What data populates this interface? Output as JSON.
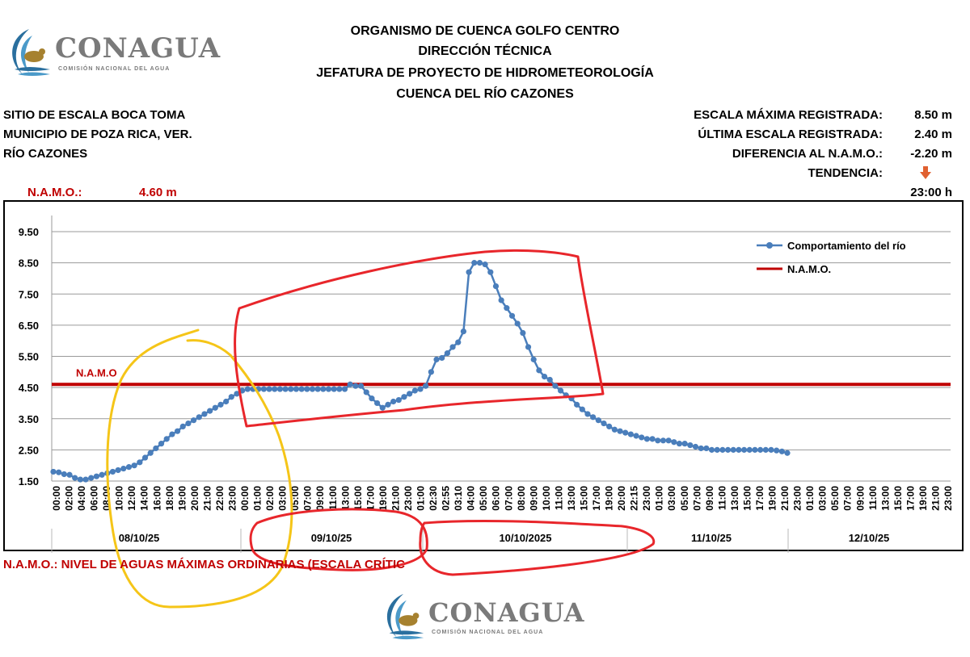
{
  "header": {
    "line1": "ORGANISMO DE CUENCA GOLFO CENTRO",
    "line2": "DIRECCIÓN TÉCNICA",
    "line3": "JEFATURA DE PROYECTO DE HIDROMETEOROLOGÍA",
    "line4": "CUENCA DEL RÍO CAZONES"
  },
  "logo": {
    "name": "CONAGUA",
    "subtitle": "COMISIÓN NACIONAL DEL AGUA"
  },
  "site": {
    "line1": "SITIO DE ESCALA BOCA TOMA",
    "line2": "MUNICIPIO DE POZA RICA, VER.",
    "line3": "RÍO CAZONES"
  },
  "stats": {
    "max_label": "ESCALA MÁXIMA REGISTRADA:",
    "max_value": "8.50 m",
    "last_label": "ÚLTIMA ESCALA REGISTRADA:",
    "last_value": "2.40 m",
    "diff_label": "DIFERENCIA AL N.A.M.O.:",
    "diff_value": "-2.20 m",
    "trend_label": "TENDENCIA:",
    "trend_icon": "down-arrow-icon",
    "time": "23:00 h"
  },
  "namo": {
    "label": "N.A.M.O.:",
    "value": "4.60 m"
  },
  "footer_note": "N.A.M.O.: NIVEL DE AGUAS MÁXIMAS ORDINARIAS (ESCALA CRÍTIC",
  "colors": {
    "series": "#4a7ebb",
    "namo": "#c00000",
    "annotation_red": "#e8262b",
    "annotation_yellow": "#f5c518",
    "title_red": "#c00000"
  },
  "chart_data": {
    "type": "line",
    "title": "",
    "xlabel": "",
    "ylabel": "",
    "ylim": [
      1.5,
      9.5
    ],
    "yticks": [
      "1.50",
      "2.50",
      "3.50",
      "4.50",
      "5.50",
      "6.50",
      "7.50",
      "8.50",
      "9.50"
    ],
    "namo_level": 4.6,
    "namo_text": "N.A.M.O",
    "legend": [
      "Comportamiento del río",
      "N.A.M.O."
    ],
    "legend_position": "top-right",
    "x_ticks": [
      "00:00",
      "02:00",
      "04:00",
      "06:00",
      "08:00",
      "10:00",
      "12:00",
      "14:00",
      "16:00",
      "18:00",
      "19:00",
      "20:00",
      "21:00",
      "22:00",
      "23:00",
      "00:00",
      "01:00",
      "02:00",
      "03:00",
      "05:00",
      "07:00",
      "09:00",
      "11:00",
      "13:00",
      "15:00",
      "17:00",
      "19:00",
      "21:00",
      "23:00",
      "01:00",
      "02:30",
      "02:55",
      "03:10",
      "04:00",
      "05:00",
      "06:00",
      "07:00",
      "08:00",
      "09:00",
      "10:00",
      "11:00",
      "13:00",
      "15:00",
      "17:00",
      "19:00",
      "20:00",
      "22:15",
      "23:00",
      "01:00",
      "03:00",
      "05:00",
      "07:00",
      "09:00",
      "11:00",
      "13:00",
      "15:00",
      "17:00",
      "19:00",
      "21:00",
      "23:00",
      "01:00",
      "03:00",
      "05:00",
      "07:00",
      "09:00",
      "11:00",
      "13:00",
      "15:00",
      "17:00",
      "19:00",
      "21:00",
      "23:00"
    ],
    "date_labels": [
      "08/10/25",
      "09/10/25",
      "10/10/2025",
      "11/10/25",
      "12/10/25"
    ],
    "series": [
      {
        "name": "Comportamiento del río",
        "values": [
          1.8,
          1.78,
          1.72,
          1.7,
          1.6,
          1.55,
          1.55,
          1.6,
          1.65,
          1.7,
          1.75,
          1.8,
          1.85,
          1.9,
          1.95,
          2.0,
          2.1,
          2.25,
          2.4,
          2.55,
          2.7,
          2.85,
          3.0,
          3.1,
          3.25,
          3.35,
          3.45,
          3.55,
          3.65,
          3.75,
          3.85,
          3.95,
          4.05,
          4.2,
          4.3,
          4.4,
          4.45,
          4.45,
          4.45,
          4.45,
          4.45,
          4.45,
          4.45,
          4.45,
          4.45,
          4.45,
          4.45,
          4.45,
          4.45,
          4.45,
          4.45,
          4.45,
          4.45,
          4.45,
          4.45,
          4.6,
          4.55,
          4.55,
          4.35,
          4.15,
          4.0,
          3.85,
          3.95,
          4.05,
          4.1,
          4.2,
          4.3,
          4.4,
          4.45,
          4.55,
          5.0,
          5.4,
          5.45,
          5.6,
          5.8,
          5.95,
          6.3,
          8.2,
          8.5,
          8.5,
          8.45,
          8.2,
          7.75,
          7.3,
          7.05,
          6.8,
          6.55,
          6.25,
          5.8,
          5.4,
          5.05,
          4.85,
          4.75,
          4.55,
          4.4,
          4.25,
          4.15,
          3.95,
          3.8,
          3.65,
          3.55,
          3.45,
          3.35,
          3.25,
          3.15,
          3.1,
          3.05,
          3.0,
          2.95,
          2.9,
          2.85,
          2.85,
          2.8,
          2.8,
          2.8,
          2.75,
          2.7,
          2.7,
          2.65,
          2.6,
          2.55,
          2.55,
          2.5,
          2.5,
          2.5,
          2.5,
          2.5,
          2.5,
          2.5,
          2.5,
          2.5,
          2.5,
          2.5,
          2.5,
          2.48,
          2.45,
          2.4
        ]
      }
    ]
  }
}
